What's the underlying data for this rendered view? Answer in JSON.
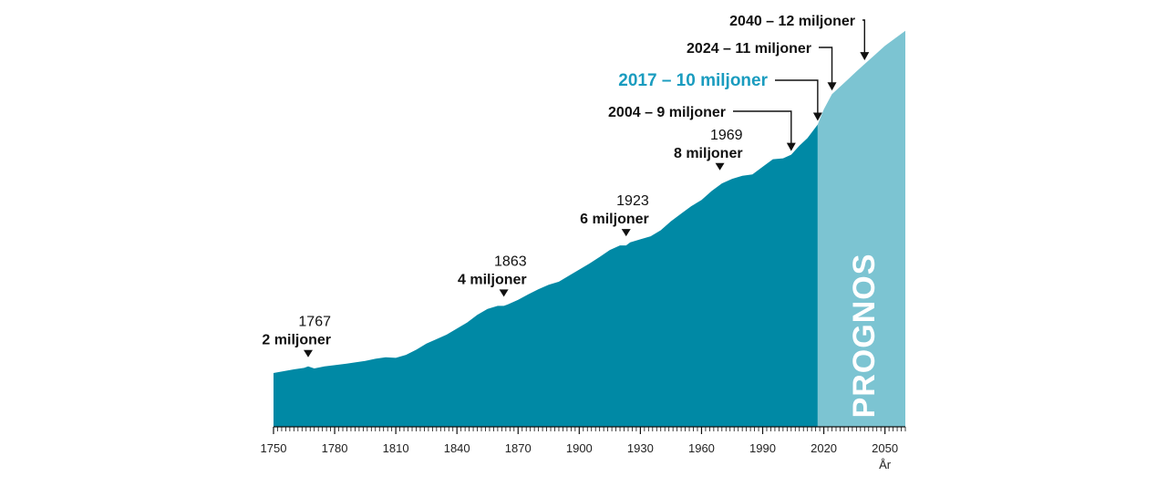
{
  "colors": {
    "history": "#0089a5",
    "forecast": "#7cc4d2",
    "highlight": "#1a9cbf",
    "axis": "#111111"
  },
  "chart_data": {
    "type": "area",
    "xlabel": "År",
    "ylabel": "",
    "xlim": [
      1750,
      2060
    ],
    "ylim": [
      0,
      13
    ],
    "x_ticks": [
      1750,
      1780,
      1810,
      1840,
      1870,
      1900,
      1930,
      1960,
      1990,
      2020,
      2050
    ],
    "x_tick_labels": [
      "1750",
      "1780",
      "1810",
      "1840",
      "1870",
      "1900",
      "1930",
      "1960",
      "1990",
      "2020",
      "2050"
    ],
    "forecast_start": 2017,
    "forecast_label": "PROGNOS",
    "series": [
      {
        "x": [
          1750,
          1755,
          1760,
          1765,
          1767,
          1770,
          1775,
          1780,
          1785,
          1790,
          1795,
          1800,
          1805,
          1810,
          1815,
          1820,
          1825,
          1830,
          1835,
          1840,
          1845,
          1850,
          1855,
          1860,
          1863,
          1865,
          1870,
          1875,
          1880,
          1885,
          1890,
          1895,
          1900,
          1905,
          1910,
          1915,
          1920,
          1923,
          1925,
          1930,
          1935,
          1940,
          1945,
          1950,
          1955,
          1960,
          1965,
          1969,
          1970,
          1975,
          1980,
          1985,
          1990,
          1995,
          2000,
          2004,
          2008,
          2012,
          2017
        ],
        "y": [
          1.78,
          1.84,
          1.9,
          1.95,
          2.0,
          1.93,
          2.0,
          2.04,
          2.08,
          2.13,
          2.18,
          2.25,
          2.3,
          2.28,
          2.38,
          2.55,
          2.75,
          2.9,
          3.05,
          3.25,
          3.45,
          3.7,
          3.9,
          4.0,
          4.0,
          4.05,
          4.2,
          4.38,
          4.55,
          4.7,
          4.8,
          5.0,
          5.2,
          5.4,
          5.62,
          5.85,
          6.0,
          6.0,
          6.1,
          6.2,
          6.3,
          6.5,
          6.8,
          7.05,
          7.3,
          7.5,
          7.8,
          8.0,
          8.05,
          8.2,
          8.3,
          8.35,
          8.6,
          8.85,
          8.88,
          9.0,
          9.3,
          9.55,
          10.0
        ]
      },
      {
        "x": [
          2017,
          2020,
          2024,
          2028,
          2032,
          2036,
          2040,
          2045,
          2050,
          2055,
          2060
        ],
        "y": [
          10.0,
          10.5,
          11.0,
          11.25,
          11.5,
          11.75,
          12.0,
          12.3,
          12.6,
          12.85,
          13.1
        ]
      }
    ],
    "annotations": [
      {
        "year": "1767",
        "text": "2 miljoner",
        "x": 1767,
        "y": 2.0
      },
      {
        "year": "1863",
        "text": "4 miljoner",
        "x": 1863,
        "y": 4.0
      },
      {
        "year": "1923",
        "text": "6 miljoner",
        "x": 1923,
        "y": 6.0
      },
      {
        "year": "1969",
        "text": "8 miljoner",
        "x": 1969,
        "y": 8.0
      },
      {
        "label": "2004 – 9 miljoner",
        "x": 2004,
        "y": 9.0
      },
      {
        "label": "2017 – 10 miljoner",
        "x": 2017,
        "y": 10.0,
        "highlight": true
      },
      {
        "label": "2024 – 11 miljoner",
        "x": 2024,
        "y": 11.0
      },
      {
        "label": "2040 – 12 miljoner",
        "x": 2040,
        "y": 12.0
      }
    ]
  }
}
